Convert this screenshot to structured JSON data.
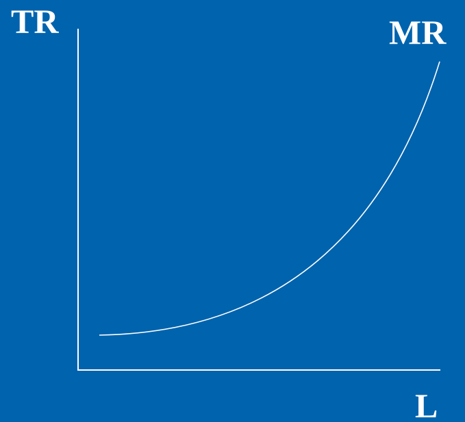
{
  "colors": {
    "background": "#0063AE",
    "foreground": "#FFFFFF"
  },
  "labels": {
    "y_axis": "TR",
    "curve": "MR",
    "x_axis": "L"
  }
}
